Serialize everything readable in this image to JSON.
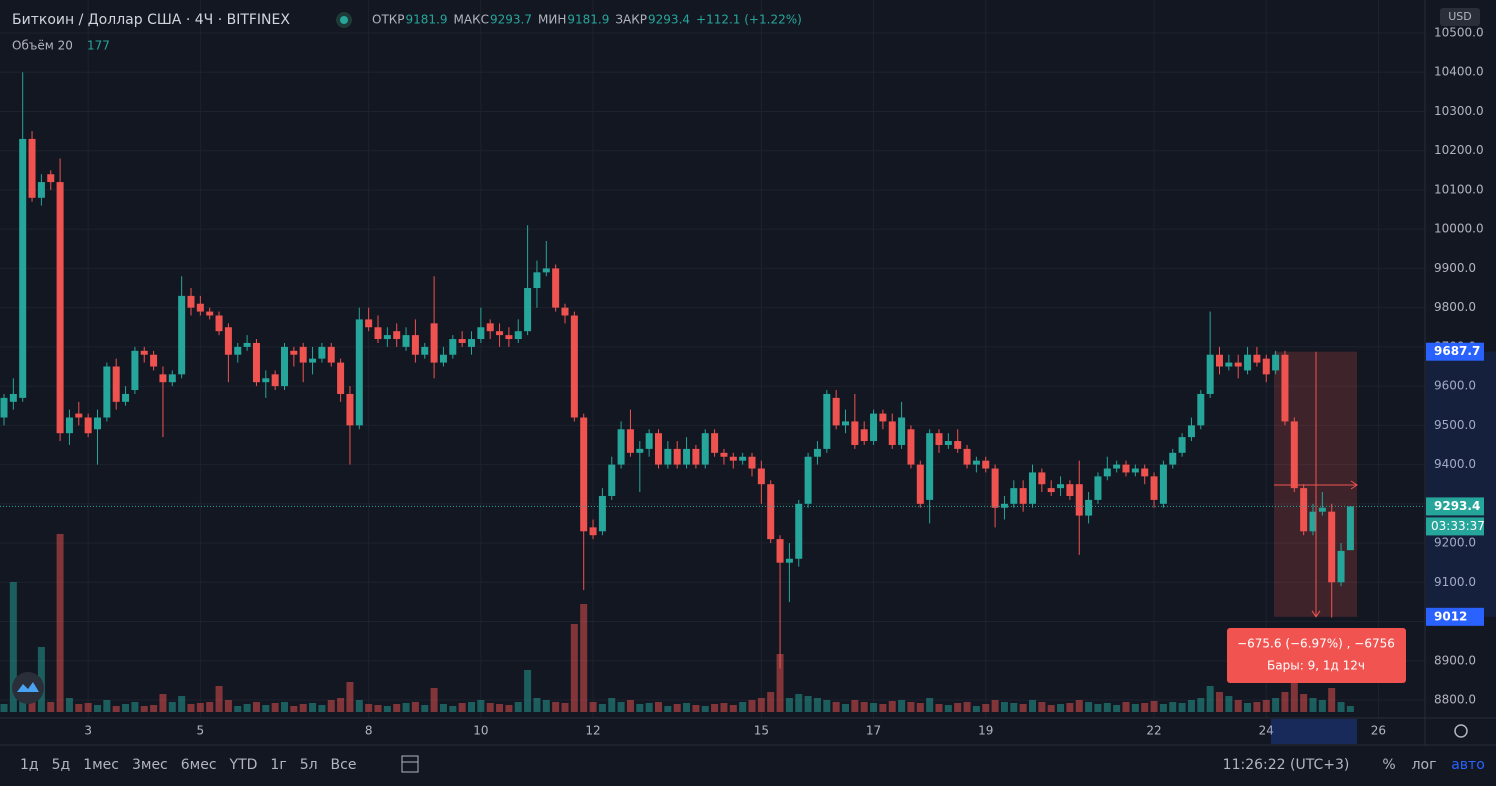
{
  "header": {
    "symbol": "Биткоин / Доллар США · 4Ч · BITFINEX",
    "open_label": "ОТКР",
    "high_label": "МАКС",
    "low_label": "МИН",
    "close_label": "ЗАКР",
    "change": "+112.1 (+1.22%)",
    "volume_label": "Объём 20",
    "volume_value": 177,
    "currency": "USD"
  },
  "toolbar": {
    "ranges": [
      "1д",
      "5д",
      "1мес",
      "3мес",
      "6мес",
      "YTD",
      "1г",
      "5л",
      "Все"
    ],
    "clock": "11:26:22 (UTC+3)",
    "percent": "%",
    "log": "лог",
    "auto": "авто"
  },
  "chart_data": {
    "type": "candlestick",
    "up_color": "#26a69a",
    "down_color": "#ef5350",
    "grid": true,
    "ylim": [
      8800,
      10500
    ],
    "yticks": [
      {
        "value": 8800,
        "label": "8800.0"
      },
      {
        "value": 8900,
        "label": "8900.0"
      },
      {
        "value": 9000,
        "label": "9000.0"
      },
      {
        "value": 9100,
        "label": "9100.0"
      },
      {
        "value": 9200,
        "label": "9200.0"
      },
      {
        "value": 9300,
        "label": "9300.0"
      },
      {
        "value": 9400,
        "label": "9400.0"
      },
      {
        "value": 9500,
        "label": "9500.0"
      },
      {
        "value": 9600,
        "label": "9600.0"
      },
      {
        "value": 9700,
        "label": "9700.0"
      },
      {
        "value": 9800,
        "label": "9800.0"
      },
      {
        "value": 9900,
        "label": "9900.0"
      },
      {
        "value": 10000,
        "label": "10000.0"
      },
      {
        "value": 10100,
        "label": "10100.0"
      },
      {
        "value": 10200,
        "label": "10200.0"
      },
      {
        "value": 10300,
        "label": "10300.0"
      },
      {
        "value": 10400,
        "label": "10400.0"
      },
      {
        "value": 10500,
        "label": "10500.0"
      }
    ],
    "xticks": [
      {
        "value": 9,
        "label": "3"
      },
      {
        "value": 21,
        "label": "5"
      },
      {
        "value": 39,
        "label": "8"
      },
      {
        "value": 51,
        "label": "10"
      },
      {
        "value": 63,
        "label": "12"
      },
      {
        "value": 81,
        "label": "15"
      },
      {
        "value": 93,
        "label": "17"
      },
      {
        "value": 105,
        "label": "19"
      },
      {
        "value": 123,
        "label": "22"
      },
      {
        "value": 135,
        "label": "24"
      },
      {
        "value": 147,
        "label": "26"
      }
    ],
    "candles": [
      [
        9520,
        9580,
        9500,
        9570
      ],
      [
        9560,
        9620,
        9540,
        9580
      ],
      [
        9570,
        10400,
        9560,
        10230
      ],
      [
        10230,
        10250,
        10070,
        10080
      ],
      [
        10080,
        10140,
        10060,
        10120
      ],
      [
        10140,
        10150,
        10100,
        10120
      ],
      [
        10120,
        10180,
        9460,
        9480
      ],
      [
        9480,
        9540,
        9450,
        9520
      ],
      [
        9530,
        9560,
        9500,
        9520
      ],
      [
        9520,
        9530,
        9470,
        9480
      ],
      [
        9490,
        9540,
        9400,
        9520
      ],
      [
        9520,
        9660,
        9510,
        9650
      ],
      [
        9650,
        9670,
        9540,
        9560
      ],
      [
        9560,
        9600,
        9550,
        9580
      ],
      [
        9590,
        9700,
        9580,
        9690
      ],
      [
        9690,
        9700,
        9660,
        9680
      ],
      [
        9680,
        9690,
        9640,
        9650
      ],
      [
        9630,
        9650,
        9470,
        9610
      ],
      [
        9610,
        9640,
        9600,
        9630
      ],
      [
        9630,
        9880,
        9620,
        9830
      ],
      [
        9830,
        9850,
        9780,
        9800
      ],
      [
        9810,
        9830,
        9780,
        9790
      ],
      [
        9790,
        9800,
        9770,
        9780
      ],
      [
        9780,
        9790,
        9730,
        9740
      ],
      [
        9750,
        9760,
        9610,
        9680
      ],
      [
        9680,
        9710,
        9660,
        9700
      ],
      [
        9700,
        9730,
        9690,
        9710
      ],
      [
        9710,
        9720,
        9600,
        9610
      ],
      [
        9610,
        9640,
        9570,
        9620
      ],
      [
        9630,
        9640,
        9590,
        9600
      ],
      [
        9600,
        9710,
        9590,
        9700
      ],
      [
        9690,
        9700,
        9650,
        9680
      ],
      [
        9700,
        9710,
        9610,
        9660
      ],
      [
        9660,
        9700,
        9630,
        9670
      ],
      [
        9670,
        9710,
        9660,
        9700
      ],
      [
        9700,
        9710,
        9650,
        9660
      ],
      [
        9660,
        9670,
        9560,
        9580
      ],
      [
        9580,
        9600,
        9400,
        9500
      ],
      [
        9500,
        9800,
        9490,
        9770
      ],
      [
        9770,
        9800,
        9740,
        9750
      ],
      [
        9750,
        9780,
        9710,
        9720
      ],
      [
        9720,
        9750,
        9700,
        9730
      ],
      [
        9740,
        9760,
        9700,
        9720
      ],
      [
        9700,
        9750,
        9690,
        9730
      ],
      [
        9730,
        9770,
        9660,
        9680
      ],
      [
        9680,
        9710,
        9670,
        9700
      ],
      [
        9760,
        9880,
        9620,
        9660
      ],
      [
        9660,
        9700,
        9650,
        9680
      ],
      [
        9680,
        9730,
        9670,
        9720
      ],
      [
        9720,
        9740,
        9700,
        9710
      ],
      [
        9700,
        9740,
        9680,
        9720
      ],
      [
        9720,
        9800,
        9710,
        9750
      ],
      [
        9760,
        9770,
        9720,
        9740
      ],
      [
        9740,
        9760,
        9700,
        9730
      ],
      [
        9730,
        9750,
        9700,
        9720
      ],
      [
        9720,
        9770,
        9710,
        9740
      ],
      [
        9740,
        10010,
        9730,
        9850
      ],
      [
        9850,
        9920,
        9800,
        9890
      ],
      [
        9890,
        9970,
        9880,
        9900
      ],
      [
        9900,
        9910,
        9790,
        9800
      ],
      [
        9800,
        9810,
        9760,
        9780
      ],
      [
        9780,
        9790,
        9510,
        9520
      ],
      [
        9520,
        9530,
        9080,
        9230
      ],
      [
        9240,
        9260,
        9210,
        9220
      ],
      [
        9230,
        9340,
        9220,
        9320
      ],
      [
        9320,
        9420,
        9310,
        9400
      ],
      [
        9400,
        9510,
        9390,
        9490
      ],
      [
        9490,
        9540,
        9420,
        9430
      ],
      [
        9430,
        9460,
        9330,
        9440
      ],
      [
        9440,
        9490,
        9420,
        9480
      ],
      [
        9480,
        9490,
        9390,
        9400
      ],
      [
        9400,
        9460,
        9390,
        9440
      ],
      [
        9440,
        9460,
        9390,
        9400
      ],
      [
        9400,
        9470,
        9390,
        9440
      ],
      [
        9440,
        9450,
        9390,
        9400
      ],
      [
        9400,
        9490,
        9390,
        9480
      ],
      [
        9480,
        9490,
        9420,
        9430
      ],
      [
        9430,
        9440,
        9400,
        9420
      ],
      [
        9420,
        9430,
        9390,
        9410
      ],
      [
        9410,
        9430,
        9400,
        9420
      ],
      [
        9420,
        9430,
        9370,
        9390
      ],
      [
        9390,
        9410,
        9300,
        9350
      ],
      [
        9350,
        9360,
        9200,
        9210
      ],
      [
        9210,
        9220,
        8880,
        9150
      ],
      [
        9150,
        9200,
        9050,
        9160
      ],
      [
        9160,
        9310,
        9140,
        9300
      ],
      [
        9300,
        9430,
        9290,
        9420
      ],
      [
        9420,
        9460,
        9400,
        9440
      ],
      [
        9440,
        9590,
        9430,
        9580
      ],
      [
        9570,
        9590,
        9490,
        9500
      ],
      [
        9500,
        9540,
        9480,
        9510
      ],
      [
        9510,
        9580,
        9440,
        9450
      ],
      [
        9490,
        9510,
        9450,
        9460
      ],
      [
        9460,
        9540,
        9450,
        9530
      ],
      [
        9530,
        9540,
        9490,
        9510
      ],
      [
        9510,
        9530,
        9440,
        9450
      ],
      [
        9450,
        9560,
        9440,
        9520
      ],
      [
        9490,
        9500,
        9390,
        9400
      ],
      [
        9400,
        9410,
        9290,
        9300
      ],
      [
        9310,
        9490,
        9250,
        9480
      ],
      [
        9480,
        9490,
        9430,
        9450
      ],
      [
        9450,
        9480,
        9440,
        9460
      ],
      [
        9460,
        9490,
        9430,
        9440
      ],
      [
        9440,
        9450,
        9390,
        9400
      ],
      [
        9400,
        9420,
        9380,
        9410
      ],
      [
        9410,
        9420,
        9380,
        9390
      ],
      [
        9390,
        9400,
        9240,
        9290
      ],
      [
        9290,
        9320,
        9260,
        9300
      ],
      [
        9300,
        9360,
        9290,
        9340
      ],
      [
        9340,
        9360,
        9280,
        9300
      ],
      [
        9300,
        9400,
        9290,
        9380
      ],
      [
        9380,
        9390,
        9330,
        9350
      ],
      [
        9340,
        9360,
        9320,
        9330
      ],
      [
        9340,
        9370,
        9320,
        9350
      ],
      [
        9350,
        9360,
        9310,
        9320
      ],
      [
        9350,
        9410,
        9170,
        9270
      ],
      [
        9270,
        9330,
        9250,
        9310
      ],
      [
        9310,
        9380,
        9300,
        9370
      ],
      [
        9370,
        9420,
        9360,
        9390
      ],
      [
        9390,
        9410,
        9380,
        9400
      ],
      [
        9400,
        9410,
        9370,
        9380
      ],
      [
        9380,
        9400,
        9370,
        9390
      ],
      [
        9390,
        9400,
        9350,
        9370
      ],
      [
        9370,
        9380,
        9290,
        9310
      ],
      [
        9300,
        9410,
        9290,
        9400
      ],
      [
        9400,
        9440,
        9390,
        9430
      ],
      [
        9430,
        9480,
        9420,
        9470
      ],
      [
        9470,
        9520,
        9460,
        9500
      ],
      [
        9500,
        9590,
        9490,
        9580
      ],
      [
        9580,
        9790,
        9570,
        9680
      ],
      [
        9680,
        9700,
        9630,
        9650
      ],
      [
        9650,
        9680,
        9640,
        9660
      ],
      [
        9660,
        9680,
        9620,
        9650
      ],
      [
        9640,
        9700,
        9630,
        9680
      ],
      [
        9680,
        9700,
        9650,
        9660
      ],
      [
        9670,
        9680,
        9610,
        9630
      ],
      [
        9640,
        9690,
        9630,
        9680
      ],
      [
        9680,
        9690,
        9500,
        9510
      ],
      [
        9510,
        9520,
        9330,
        9340
      ],
      [
        9340,
        9350,
        9220,
        9230
      ],
      [
        9230,
        9300,
        9220,
        9280
      ],
      [
        9280,
        9330,
        9270,
        9290
      ],
      [
        9280,
        9300,
        9010,
        9100
      ],
      [
        9100,
        9200,
        9090,
        9180
      ],
      [
        9181.9,
        9293.7,
        9181.9,
        9293.4
      ]
    ],
    "volume_ylim": [
      0,
      200
    ],
    "volume": [
      8,
      130,
      14,
      12,
      65,
      10,
      178,
      14,
      8,
      9,
      7,
      12,
      6,
      8,
      10,
      6,
      7,
      18,
      10,
      16,
      8,
      9,
      10,
      26,
      12,
      6,
      8,
      10,
      7,
      9,
      10,
      6,
      8,
      9,
      7,
      12,
      14,
      30,
      12,
      8,
      7,
      6,
      8,
      9,
      10,
      7,
      24,
      8,
      6,
      9,
      10,
      12,
      9,
      8,
      7,
      10,
      42,
      14,
      12,
      10,
      9,
      88,
      108,
      10,
      8,
      14,
      10,
      12,
      8,
      9,
      10,
      6,
      8,
      9,
      7,
      6,
      8,
      9,
      7,
      10,
      12,
      14,
      20,
      58,
      14,
      18,
      16,
      14,
      12,
      10,
      8,
      12,
      10,
      9,
      8,
      11,
      12,
      10,
      9,
      14,
      8,
      7,
      9,
      10,
      6,
      8,
      12,
      10,
      9,
      8,
      12,
      10,
      7,
      8,
      9,
      12,
      10,
      8,
      9,
      7,
      10,
      8,
      9,
      11,
      8,
      10,
      9,
      12,
      14,
      26,
      20,
      16,
      12,
      9,
      10,
      12,
      14,
      20,
      30,
      18,
      14,
      12,
      24,
      10,
      6
    ],
    "last_timer": "03:33:37",
    "measure": {
      "top": 9687.7,
      "bottom": 9012.0,
      "change": "−675.6 (−6.97%) , −6756",
      "bars": "Бары: 9, 1д 12ч"
    }
  }
}
